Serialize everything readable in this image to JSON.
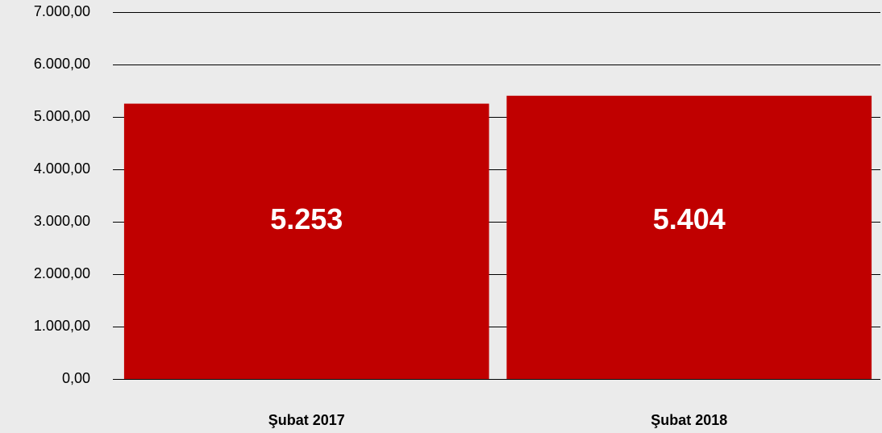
{
  "chart_data": {
    "type": "bar",
    "categories": [
      "Şubat 2017",
      "Şubat 2018"
    ],
    "values": [
      5253,
      5404
    ],
    "value_labels": [
      "5.253",
      "5.404"
    ],
    "color": "#c00000",
    "ylim": [
      0,
      7000
    ],
    "yticks": [
      {
        "value": 0,
        "label": "0,00"
      },
      {
        "value": 1000,
        "label": "1.000,00"
      },
      {
        "value": 2000,
        "label": "2.000,00"
      },
      {
        "value": 3000,
        "label": "3.000,00"
      },
      {
        "value": 4000,
        "label": "4.000,00"
      },
      {
        "value": 5000,
        "label": "5.000,00"
      },
      {
        "value": 6000,
        "label": "6.000,00"
      },
      {
        "value": 7000,
        "label": "7.000,00"
      }
    ],
    "grid": true
  }
}
